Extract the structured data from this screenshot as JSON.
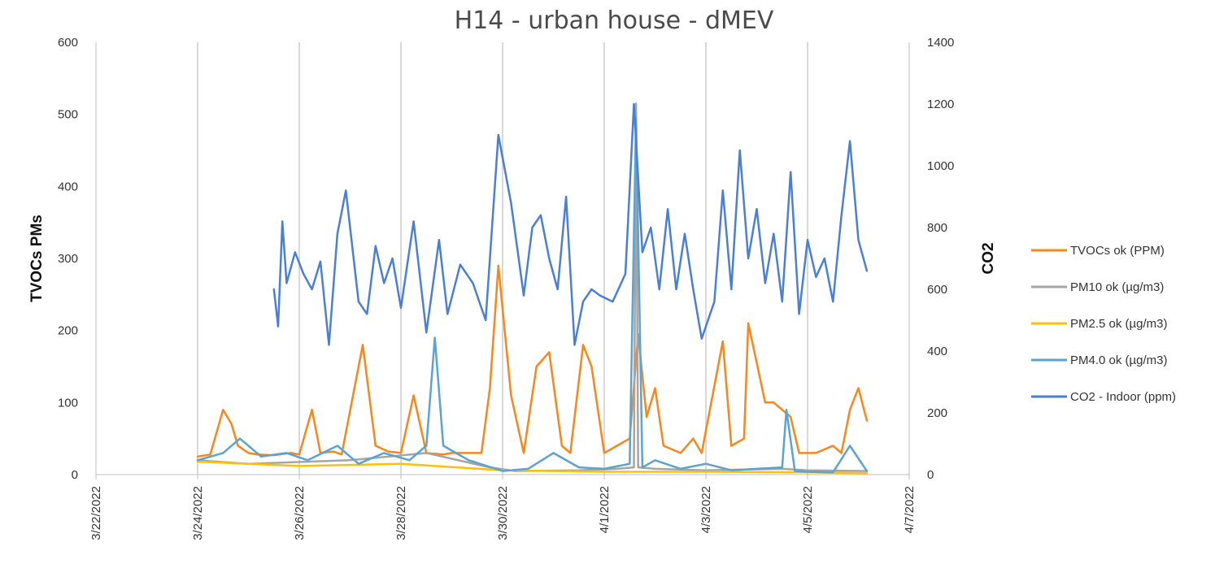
{
  "chart_data": {
    "type": "line",
    "title": "H14 - urban house - dMEV",
    "ylabel": "TVOCs PMs",
    "y2label": "CO2",
    "xlim": [
      "3/22/2022",
      "4/7/2022"
    ],
    "x_ticks": [
      "3/22/2022",
      "3/24/2022",
      "3/26/2022",
      "3/28/2022",
      "3/30/2022",
      "4/1/2022",
      "4/3/2022",
      "4/5/2022",
      "4/7/2022"
    ],
    "ylim": [
      0,
      600
    ],
    "y_ticks": [
      "0",
      "100",
      "200",
      "300",
      "400",
      "500",
      "600"
    ],
    "y2lim": [
      0,
      1400
    ],
    "y2_ticks": [
      "0",
      "200",
      "400",
      "600",
      "800",
      "1000",
      "1200",
      "1400"
    ],
    "grid": "vertical",
    "legend_position": "right",
    "series": [
      {
        "name": "TVOCs ok (PPM)",
        "axis": "left",
        "color": "#f7861c",
        "x": [
          "3/24/2022 00:00",
          "3/24/2022 06:00",
          "3/24/2022 12:00",
          "3/24/2022 16:00",
          "3/24/2022 19:00",
          "3/25/2022 00:00",
          "3/25/2022 04:00",
          "3/25/2022 12:00",
          "3/25/2022 20:00",
          "3/26/2022 00:00",
          "3/26/2022 06:00",
          "3/26/2022 10:00",
          "3/26/2022 16:00",
          "3/26/2022 20:00",
          "3/27/2022 06:00",
          "3/27/2022 12:00",
          "3/27/2022 18:00",
          "3/28/2022 00:00",
          "3/28/2022 06:00",
          "3/28/2022 12:00",
          "3/28/2022 20:00",
          "3/29/2022 00:00",
          "3/29/2022 08:00",
          "3/29/2022 14:00",
          "3/29/2022 18:00",
          "3/29/2022 22:00",
          "3/30/2022 04:00",
          "3/30/2022 10:00",
          "3/30/2022 16:00",
          "3/30/2022 22:00",
          "3/31/2022 04:00",
          "3/31/2022 08:00",
          "3/31/2022 14:00",
          "3/31/2022 18:00",
          "4/1/2022 00:00",
          "4/1/2022 06:00",
          "4/1/2022 12:00",
          "4/1/2022 16:00",
          "4/1/2022 20:00",
          "4/2/2022 00:00",
          "4/2/2022 04:00",
          "4/2/2022 12:00",
          "4/2/2022 18:00",
          "4/2/2022 22:00",
          "4/3/2022 08:00",
          "4/3/2022 12:00",
          "4/3/2022 18:00",
          "4/3/2022 20:00",
          "4/4/2022 04:00",
          "4/4/2022 08:00",
          "4/4/2022 16:00",
          "4/4/2022 20:00",
          "4/5/2022 04:00",
          "4/5/2022 12:00",
          "4/5/2022 16:00",
          "4/5/2022 20:00",
          "4/6/2022 00:00",
          "4/6/2022 04:00"
        ],
        "values": [
          25,
          28,
          90,
          70,
          40,
          30,
          28,
          27,
          30,
          28,
          90,
          30,
          32,
          28,
          180,
          40,
          32,
          30,
          110,
          30,
          28,
          30,
          30,
          30,
          120,
          290,
          110,
          30,
          150,
          170,
          40,
          30,
          180,
          150,
          30,
          40,
          50,
          195,
          80,
          120,
          40,
          30,
          50,
          30,
          185,
          40,
          50,
          210,
          100,
          100,
          80,
          30,
          30,
          40,
          30,
          90,
          120,
          75
        ]
      },
      {
        "name": "PM10 ok (µg/m3)",
        "axis": "left",
        "color": "#a5a5a5",
        "x": [
          "3/24/2022 00:00",
          "3/25/2022 00:00",
          "3/27/2022 00:00",
          "3/28/2022 12:00",
          "3/29/2022 18:00",
          "3/30/2022 06:00",
          "3/31/2022 12:00",
          "4/1/2022 06:00",
          "4/1/2022 14:00",
          "4/1/2022 15:00",
          "4/1/2022 16:00",
          "4/2/2022 00:00",
          "4/3/2022 00:00",
          "4/4/2022 12:00",
          "4/5/2022 00:00",
          "4/6/2022 04:00"
        ],
        "values": [
          20,
          15,
          20,
          30,
          10,
          5,
          6,
          8,
          10,
          515,
          10,
          8,
          6,
          8,
          6,
          5
        ]
      },
      {
        "name": "PM2.5 ok (µg/m3)",
        "axis": "left",
        "color": "#ffc000",
        "x": [
          "3/24/2022 00:00",
          "3/26/2022 00:00",
          "3/28/2022 00:00",
          "3/30/2022 00:00",
          "4/1/2022 00:00",
          "4/3/2022 00:00",
          "4/5/2022 00:00",
          "4/6/2022 04:00"
        ],
        "values": [
          18,
          12,
          15,
          6,
          4,
          4,
          3,
          2
        ]
      },
      {
        "name": "PM4.0 ok (µg/m3)",
        "axis": "left",
        "color": "#5ba3d0",
        "x": [
          "3/24/2022 00:00",
          "3/24/2022 12:00",
          "3/24/2022 20:00",
          "3/25/2022 06:00",
          "3/25/2022 18:00",
          "3/26/2022 04:00",
          "3/26/2022 18:00",
          "3/27/2022 04:00",
          "3/27/2022 16:00",
          "3/28/2022 04:00",
          "3/28/2022 12:00",
          "3/28/2022 16:00",
          "3/28/2022 20:00",
          "3/29/2022 08:00",
          "3/30/2022 00:00",
          "3/30/2022 12:00",
          "3/31/2022 00:00",
          "3/31/2022 12:00",
          "4/1/2022 00:00",
          "4/1/2022 12:00",
          "4/1/2022 15:00",
          "4/1/2022 18:00",
          "4/2/2022 00:00",
          "4/2/2022 12:00",
          "4/3/2022 00:00",
          "4/3/2022 12:00",
          "4/4/2022 00:00",
          "4/4/2022 12:00",
          "4/4/2022 14:00",
          "4/4/2022 18:00",
          "4/5/2022 00:00",
          "4/5/2022 12:00",
          "4/5/2022 20:00",
          "4/6/2022 04:00"
        ],
        "values": [
          20,
          30,
          50,
          25,
          30,
          20,
          40,
          15,
          30,
          20,
          40,
          190,
          40,
          20,
          5,
          8,
          30,
          10,
          8,
          15,
          495,
          10,
          20,
          8,
          15,
          6,
          8,
          10,
          90,
          5,
          4,
          3,
          40,
          5
        ]
      },
      {
        "name": "CO2 - Indoor (ppm)",
        "axis": "right",
        "color": "#4a7fd4",
        "x": [
          "3/25/2022 12:00",
          "3/25/2022 14:00",
          "3/25/2022 16:00",
          "3/25/2022 18:00",
          "3/25/2022 22:00",
          "3/26/2022 02:00",
          "3/26/2022 06:00",
          "3/26/2022 10:00",
          "3/26/2022 14:00",
          "3/26/2022 18:00",
          "3/26/2022 22:00",
          "3/27/2022 04:00",
          "3/27/2022 08:00",
          "3/27/2022 12:00",
          "3/27/2022 16:00",
          "3/27/2022 20:00",
          "3/28/2022 00:00",
          "3/28/2022 06:00",
          "3/28/2022 12:00",
          "3/28/2022 18:00",
          "3/28/2022 22:00",
          "3/29/2022 04:00",
          "3/29/2022 10:00",
          "3/29/2022 16:00",
          "3/29/2022 22:00",
          "3/30/2022 04:00",
          "3/30/2022 10:00",
          "3/30/2022 14:00",
          "3/30/2022 18:00",
          "3/30/2022 22:00",
          "3/31/2022 02:00",
          "3/31/2022 06:00",
          "3/31/2022 10:00",
          "3/31/2022 14:00",
          "3/31/2022 18:00",
          "3/31/2022 22:00",
          "4/1/2022 04:00",
          "4/1/2022 10:00",
          "4/1/2022 14:00",
          "4/1/2022 18:00",
          "4/1/2022 22:00",
          "4/2/2022 02:00",
          "4/2/2022 06:00",
          "4/2/2022 10:00",
          "4/2/2022 14:00",
          "4/2/2022 18:00",
          "4/2/2022 22:00",
          "4/3/2022 04:00",
          "4/3/2022 08:00",
          "4/3/2022 12:00",
          "4/3/2022 16:00",
          "4/3/2022 20:00",
          "4/4/2022 00:00",
          "4/4/2022 04:00",
          "4/4/2022 08:00",
          "4/4/2022 12:00",
          "4/4/2022 16:00",
          "4/4/2022 20:00",
          "4/5/2022 00:00",
          "4/5/2022 04:00",
          "4/5/2022 08:00",
          "4/5/2022 12:00",
          "4/5/2022 16:00",
          "4/5/2022 20:00",
          "4/6/2022 00:00",
          "4/6/2022 04:00"
        ],
        "values": [
          600,
          480,
          820,
          620,
          720,
          650,
          600,
          690,
          420,
          780,
          920,
          560,
          520,
          740,
          620,
          700,
          540,
          820,
          460,
          760,
          520,
          680,
          620,
          500,
          1100,
          880,
          580,
          800,
          840,
          700,
          600,
          900,
          420,
          560,
          600,
          580,
          560,
          650,
          1200,
          720,
          800,
          600,
          860,
          600,
          780,
          600,
          440,
          560,
          920,
          600,
          1050,
          700,
          860,
          620,
          780,
          560,
          980,
          520,
          760,
          640,
          700,
          560,
          840,
          1080,
          760,
          660
        ]
      }
    ]
  }
}
